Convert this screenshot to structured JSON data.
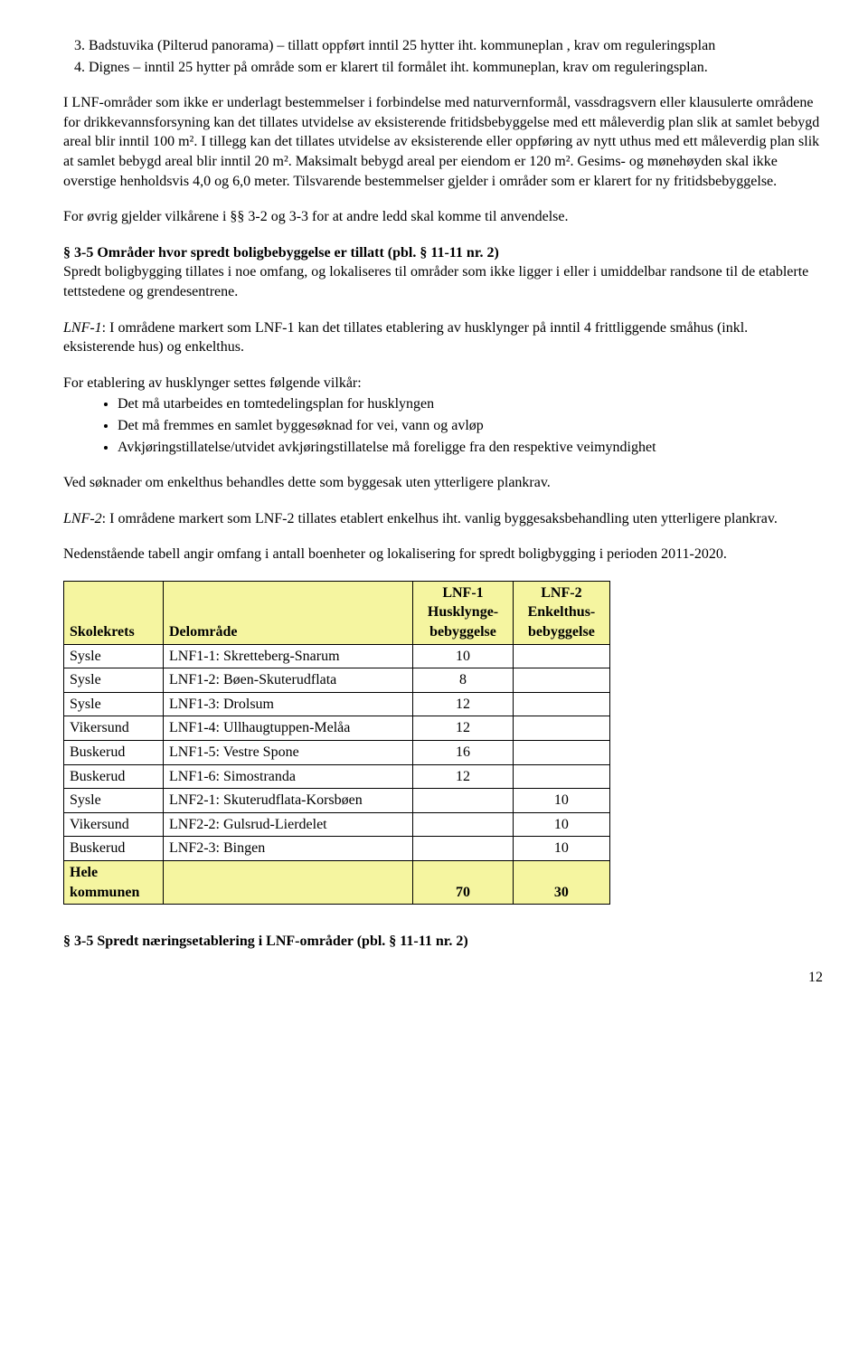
{
  "list_start": 3,
  "list_items": [
    "Badstuvika (Pilterud panorama) – tillatt oppført inntil 25 hytter iht. kommuneplan , krav om reguleringsplan",
    "Dignes – inntil 25 hytter på område som er klarert til formålet iht. kommuneplan, krav om reguleringsplan."
  ],
  "para1": "I LNF-områder som ikke er underlagt bestemmelser i forbindelse med naturvernformål, vassdragsvern eller klausulerte områdene for drikkevannsforsyning kan det tillates utvidelse av eksisterende fritidsbebyggelse med ett måleverdig plan slik at samlet bebygd areal blir inntil 100 m². I tillegg kan det tillates utvidelse av eksisterende eller oppføring av nytt uthus med ett måleverdig plan slik at samlet bebygd areal blir inntil 20 m². Maksimalt bebygd areal per eiendom er 120 m². Gesims- og mønehøyden skal ikke overstige henholdsvis 4,0 og 6,0 meter. Tilsvarende bestemmelser gjelder i områder som er klarert for ny fritidsbebyggelse.",
  "para2": "For øvrig gjelder vilkårene i §§ 3-2 og 3-3 for at andre ledd skal komme til anvendelse.",
  "heading1": "§ 3-5 Områder hvor spredt boligbebyggelse er tillatt (pbl. § 11-11 nr. 2)",
  "para3": "Spredt boligbygging tillates i noe omfang, og lokaliseres til områder som ikke ligger i eller i umiddelbar randsone til de etablerte tettstedene og grendesentrene.",
  "lnf1_label": "LNF-1",
  "lnf1_text": ": I områdene markert som LNF-1 kan det tillates etablering av husklynger på inntil 4 frittliggende småhus (inkl. eksisterende hus) og enkelthus.",
  "para4": "For etablering av husklynger settes følgende vilkår:",
  "bullets": [
    "Det må utarbeides en tomtedelingsplan for husklyngen",
    "Det må fremmes en samlet byggesøknad for vei, vann og avløp",
    "Avkjøringstillatelse/utvidet avkjøringstillatelse må foreligge fra den respektive veimyndighet"
  ],
  "para5": "Ved søknader om enkelthus behandles dette som byggesak uten ytterligere plankrav.",
  "lnf2_label": "LNF-2",
  "lnf2_text": ": I områdene markert som LNF-2 tillates etablert enkelhus iht. vanlig byggesaksbehandling uten ytterligere plankrav.",
  "para6": "Nedenstående tabell angir omfang i antall boenheter og lokalisering for spredt boligbygging i perioden 2011-2020.",
  "table": {
    "header_bg": "#f5f5a0",
    "columns": [
      "Skolekrets",
      "Delområde",
      "LNF-1 Husklynge-bebyggelse",
      "LNF-2 Enkelthus-bebyggelse"
    ],
    "col3_lines": [
      "LNF-1",
      "Husklynge-",
      "bebyggelse"
    ],
    "col4_lines": [
      "LNF-2",
      "Enkelthus-",
      "bebyggelse"
    ],
    "rows": [
      [
        "Sysle",
        "LNF1-1: Skretteberg-Snarum",
        "10",
        ""
      ],
      [
        "Sysle",
        "LNF1-2: Bøen-Skuterudflata",
        "8",
        ""
      ],
      [
        "Sysle",
        "LNF1-3: Drolsum",
        "12",
        ""
      ],
      [
        "Vikersund",
        "LNF1-4: Ullhaugtuppen-Melåa",
        "12",
        ""
      ],
      [
        "Buskerud",
        "LNF1-5: Vestre Spone",
        "16",
        ""
      ],
      [
        "Buskerud",
        "LNF1-6: Simostranda",
        "12",
        ""
      ],
      [
        "Sysle",
        "LNF2-1: Skuterudflata-Korsbøen",
        "",
        "10"
      ],
      [
        "Vikersund",
        "LNF2-2: Gulsrud-Lierdelet",
        "",
        "10"
      ],
      [
        "Buskerud",
        "LNF2-3: Bingen",
        "",
        "10"
      ]
    ],
    "total_row": [
      "Hele kommunen",
      "",
      "70",
      "30"
    ],
    "total_label_lines": [
      "Hele",
      "kommunen"
    ]
  },
  "heading2": "§ 3-5 Spredt næringsetablering i LNF-områder (pbl. § 11-11 nr. 2)",
  "page_number": "12"
}
